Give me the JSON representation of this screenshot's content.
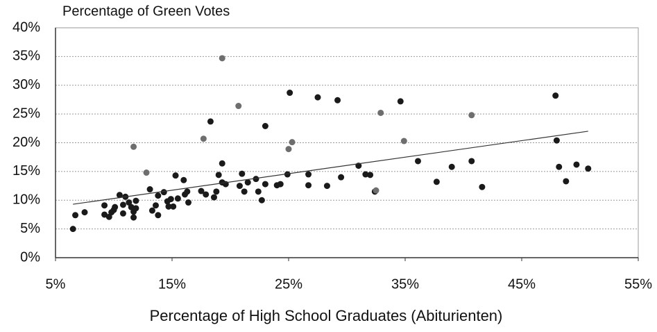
{
  "chart_data": {
    "type": "scatter",
    "title": "Percentage of Green Votes",
    "x_label": "Percentage of High School Graduates (Abiturienten)",
    "xlim": [
      5,
      55
    ],
    "xticks": [
      {
        "value": 5,
        "label": "5%"
      },
      {
        "value": 15,
        "label": "15%"
      },
      {
        "value": 25,
        "label": "25%"
      },
      {
        "value": 35,
        "label": "35%"
      },
      {
        "value": 45,
        "label": "45%"
      },
      {
        "value": 55,
        "label": "55%"
      }
    ],
    "ylim": [
      0,
      40
    ],
    "yticks": [
      {
        "value": 0,
        "label": "0%"
      },
      {
        "value": 5,
        "label": "5%"
      },
      {
        "value": 10,
        "label": "10%"
      },
      {
        "value": 15,
        "label": "15%"
      },
      {
        "value": 20,
        "label": "20%"
      },
      {
        "value": 25,
        "label": "25%"
      },
      {
        "value": 30,
        "label": "30%"
      },
      {
        "value": 35,
        "label": "35%"
      },
      {
        "value": 40,
        "label": "40%"
      }
    ],
    "grid": true,
    "series": [
      {
        "color": "#1a1a1a",
        "x": [
          6.5,
          6.7,
          7.5,
          9.2,
          9.2,
          9.6,
          9.8,
          10.0,
          10.1,
          10.5,
          10.8,
          11.0,
          10.8,
          11.3,
          11.5,
          11.7,
          11.7,
          11.9,
          11.9,
          13.1,
          13.3,
          13.6,
          13.8,
          13.8,
          14.3,
          14.6,
          14.7,
          14.9,
          15.1,
          15.3,
          15.5,
          16.0,
          16.1,
          16.3,
          16.4,
          17.5,
          17.9,
          18.3,
          18.6,
          18.8,
          19.0,
          19.3,
          19.3,
          19.6,
          20.8,
          21.0,
          21.2,
          21.5,
          22.2,
          22.4,
          22.7,
          23.0,
          23.0,
          24.0,
          24.3,
          24.9,
          25.1,
          26.7,
          26.7,
          27.5,
          28.3,
          29.2,
          29.5,
          31.0,
          31.6,
          32.0,
          32.4,
          34.6,
          36.1,
          37.7,
          39.0,
          40.7,
          41.6,
          47.9,
          48.0,
          48.2,
          48.8,
          49.7,
          50.7
        ],
        "values": [
          5.0,
          7.4,
          7.9,
          9.1,
          7.5,
          7.1,
          7.9,
          8.3,
          8.8,
          10.9,
          9.2,
          10.6,
          7.7,
          9.6,
          8.8,
          8.0,
          7.0,
          9.9,
          8.6,
          11.9,
          8.2,
          9.1,
          7.4,
          10.8,
          11.4,
          9.8,
          8.9,
          10.2,
          8.9,
          14.3,
          10.3,
          13.5,
          11.0,
          11.5,
          9.6,
          11.6,
          11.0,
          23.7,
          10.5,
          11.5,
          14.4,
          16.4,
          13.1,
          12.8,
          12.5,
          14.6,
          11.5,
          13.1,
          13.7,
          11.5,
          10.0,
          22.9,
          12.8,
          12.6,
          12.8,
          14.5,
          28.7,
          12.6,
          14.5,
          27.9,
          12.5,
          27.4,
          14.0,
          16.0,
          14.5,
          14.4,
          11.5,
          27.2,
          16.8,
          13.2,
          15.8,
          16.8,
          12.3,
          28.2,
          20.4,
          15.8,
          13.3,
          16.2,
          15.5
        ]
      },
      {
        "color": "#6e6e6e",
        "x": [
          11.7,
          12.8,
          17.7,
          19.3,
          20.7,
          25.0,
          25.3,
          32.5,
          32.9,
          34.9,
          40.7
        ],
        "values": [
          19.3,
          14.8,
          20.7,
          34.7,
          26.4,
          18.9,
          20.1,
          11.7,
          25.2,
          20.3,
          24.8
        ]
      }
    ],
    "trendline": {
      "color": "#333333",
      "x": [
        6.5,
        50.7
      ],
      "values": [
        9.3,
        22.0
      ]
    }
  }
}
